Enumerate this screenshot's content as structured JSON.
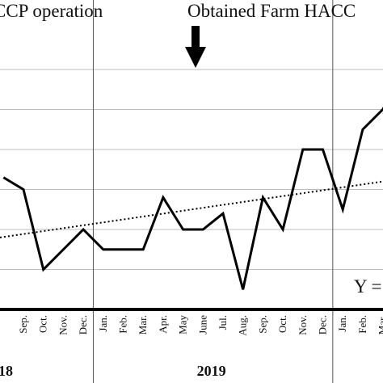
{
  "chart_data": {
    "type": "line",
    "annotations": {
      "left_text": "CCP operation",
      "right_text": "Obtained Farm HACC",
      "equation_text": "Y ="
    },
    "years": [
      {
        "label": "18",
        "span": [
          0,
          3
        ]
      },
      {
        "label": "2019",
        "span": [
          4,
          15
        ]
      }
    ],
    "categories": [
      "Sep.",
      "Oct.",
      "Nov.",
      "Dec.",
      "Jan.",
      "Feb.",
      "Mar.",
      "Apr.",
      "May",
      "June",
      "Jul.",
      "Aug.",
      "Sep.",
      "Oct.",
      "Nov.",
      "Dec.",
      "Jan.",
      "Feb.",
      "Mar.",
      ""
    ],
    "values_in_gridline_units": [
      3.0,
      1.0,
      1.5,
      2.0,
      1.5,
      1.5,
      1.5,
      2.8,
      2.0,
      2.0,
      2.4,
      0.5,
      2.8,
      2.0,
      4.0,
      4.0,
      2.5,
      4.5,
      5.0,
      5.8
    ],
    "extra_leading_value": 3.3,
    "trendline": {
      "style": "dotted",
      "start": 1.8,
      "end": 3.2
    },
    "ylim": [
      0,
      6
    ],
    "grid": true,
    "separators_after_index": [
      3,
      15
    ]
  }
}
